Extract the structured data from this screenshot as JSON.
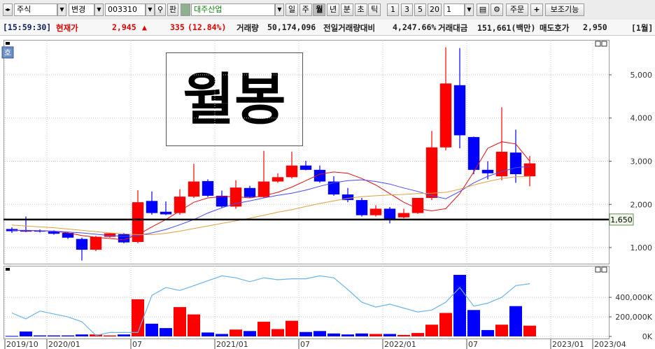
{
  "toolbar": {
    "market": "주식",
    "change": "변경",
    "code": "003310",
    "board": "판",
    "name": "대주산업",
    "periods": [
      "일",
      "주",
      "월",
      "년",
      "분",
      "초",
      "틱"
    ],
    "counts": [
      "1",
      "3",
      "5",
      "20"
    ],
    "count_input": "1",
    "order": "주문",
    "aux": "보조기능"
  },
  "status": {
    "time": "[15:59:30]",
    "price_label": "현재가",
    "price": "2,945",
    "arrow": "▲",
    "change": "335",
    "change_rate": "(12.84%)",
    "volume_label": "거래량",
    "volume": "50,174,096",
    "prev_ratio_label": "전일거래량대비",
    "prev_ratio": "4,247.66%",
    "amount_label": "거래대금",
    "amount": "151,661(백만)",
    "ask_label": "매도호가",
    "ask": "2,950",
    "period": "[1월]"
  },
  "side_icon": "호",
  "chart_data": [
    {
      "type": "candlestick",
      "annotation": "월봉",
      "x": [
        0,
        1,
        2,
        3,
        4,
        5,
        6,
        7,
        8,
        9,
        10,
        11,
        12,
        13,
        14,
        15,
        16,
        17,
        18,
        19,
        20,
        21,
        22,
        23,
        24,
        25,
        26,
        27,
        28,
        29,
        30,
        31,
        32,
        33,
        34,
        35,
        36,
        37
      ],
      "open": [
        1430,
        1390,
        1390,
        1370,
        1340,
        1200,
        950,
        1250,
        1310,
        1130,
        2080,
        1830,
        1800,
        2180,
        2540,
        2200,
        1950,
        2380,
        2170,
        2530,
        2630,
        2900,
        2800,
        2530,
        2230,
        2100,
        1750,
        1900,
        1700,
        1800,
        2150,
        3320,
        4760,
        3560,
        2800,
        2650,
        3200,
        2650
      ],
      "high": [
        1470,
        1720,
        1420,
        1400,
        1360,
        1230,
        1270,
        1340,
        1340,
        2330,
        2300,
        2070,
        2350,
        2940,
        2580,
        2320,
        2560,
        2430,
        3240,
        2720,
        3220,
        3010,
        2900,
        2650,
        2380,
        2150,
        1980,
        1940,
        1900,
        2150,
        3700,
        5640,
        5620,
        3570,
        3000,
        4250,
        3730,
        3120
      ],
      "low": [
        1340,
        1360,
        1350,
        1300,
        1200,
        700,
        920,
        1230,
        1100,
        1100,
        1760,
        1750,
        1760,
        2150,
        2170,
        1920,
        1900,
        2150,
        2150,
        2500,
        2600,
        2790,
        2500,
        2200,
        2050,
        1720,
        1720,
        1560,
        1680,
        1780,
        2100,
        3250,
        3300,
        2700,
        2580,
        2560,
        2500,
        2420
      ],
      "close": [
        1380,
        1370,
        1370,
        1320,
        1230,
        950,
        1250,
        1330,
        1120,
        2050,
        1800,
        1770,
        2180,
        2530,
        2200,
        1950,
        2390,
        2170,
        2530,
        2630,
        2900,
        2800,
        2530,
        2230,
        2100,
        1750,
        1900,
        1650,
        1800,
        2150,
        3320,
        4800,
        3600,
        2800,
        2720,
        3220,
        2700,
        2950
      ],
      "up_color": "#ff0000",
      "down_color": "#0000ff",
      "lines": [
        {
          "color": "#e01010",
          "values": [
            1400,
            1390,
            1390,
            1380,
            1340,
            1280,
            1240,
            1210,
            1180,
            1300,
            1480,
            1650,
            1850,
            2050,
            2150,
            2180,
            2180,
            2150,
            2200,
            2280,
            2400,
            2550,
            2700,
            2750,
            2720,
            2600,
            2450,
            2250,
            2050,
            1900,
            1850,
            1900,
            2250,
            2750,
            3300,
            3450,
            3400,
            3000
          ]
        },
        {
          "color": "#4848ff",
          "values": [
            1400,
            1400,
            1390,
            1380,
            1360,
            1340,
            1310,
            1280,
            1260,
            1280,
            1340,
            1420,
            1530,
            1650,
            1800,
            1920,
            2020,
            2080,
            2150,
            2210,
            2260,
            2330,
            2420,
            2500,
            2550,
            2570,
            2530,
            2470,
            2380,
            2300,
            2200,
            2130,
            2300,
            2500,
            2650,
            2760,
            2850,
            2880
          ]
        },
        {
          "color": "#e0a040",
          "values": [
            1520,
            1500,
            1480,
            1460,
            1430,
            1400,
            1370,
            1340,
            1320,
            1300,
            1300,
            1330,
            1380,
            1440,
            1500,
            1560,
            1620,
            1680,
            1750,
            1820,
            1880,
            1950,
            2020,
            2080,
            2140,
            2180,
            2200,
            2220,
            2230,
            2250,
            2260,
            2280,
            2350,
            2450,
            2530,
            2600,
            2640,
            2650
          ]
        }
      ],
      "hline": {
        "value": 1650,
        "label": "1,650"
      },
      "xlim": [
        0,
        43.15
      ],
      "ylim": [
        660,
        5680
      ],
      "yticks": [
        {
          "value": 1000,
          "label": "1,000"
        },
        {
          "value": 2000,
          "label": "2,000"
        },
        {
          "value": 3000,
          "label": "3,000"
        },
        {
          "value": 4000,
          "label": "4,000"
        },
        {
          "value": 5000,
          "label": "5,000"
        }
      ],
      "grid": true
    },
    {
      "type": "bar",
      "x": [
        0,
        1,
        2,
        3,
        4,
        5,
        6,
        7,
        8,
        9,
        10,
        11,
        12,
        13,
        14,
        15,
        16,
        17,
        18,
        19,
        20,
        21,
        22,
        23,
        24,
        25,
        26,
        27,
        28,
        29,
        30,
        31,
        32,
        33,
        34,
        35,
        36,
        37
      ],
      "values": [
        5000,
        50000,
        10000,
        10000,
        10000,
        20000,
        20000,
        10000,
        20000,
        380000,
        130000,
        85000,
        300000,
        225000,
        40000,
        25000,
        70000,
        55000,
        150000,
        75000,
        160000,
        45000,
        55000,
        30000,
        20000,
        30000,
        25000,
        25000,
        15000,
        35000,
        120000,
        240000,
        630000,
        270000,
        65000,
        120000,
        310000,
        110000
      ],
      "line": {
        "color": "#6ab4ea",
        "values": [
          240000,
          180000,
          260000,
          230000,
          200000,
          150000,
          10000,
          40000,
          40000,
          40000,
          420000,
          500000,
          470000,
          520000,
          570000,
          620000,
          600000,
          560000,
          600000,
          580000,
          590000,
          590000,
          620000,
          600000,
          480000,
          350000,
          300000,
          330000,
          290000,
          250000,
          270000,
          350000,
          500000,
          310000,
          340000,
          400000,
          520000,
          540000
        ]
      },
      "xlim": [
        0,
        43.15
      ],
      "ylim": [
        0,
        680000
      ],
      "xticks": [
        {
          "value": 0,
          "label": "2019/10"
        },
        {
          "value": 3,
          "label": "2020/01"
        },
        {
          "value": 9,
          "label": "07"
        },
        {
          "value": 15,
          "label": "2021/01"
        },
        {
          "value": 21,
          "label": "07"
        },
        {
          "value": 27,
          "label": "2022/01"
        },
        {
          "value": 33,
          "label": "07"
        },
        {
          "value": 39,
          "label": "2023/01"
        },
        {
          "value": 42,
          "label": "2023/04"
        }
      ],
      "yticks": [
        {
          "value": 0,
          "label": "0K"
        },
        {
          "value": 200000,
          "label": "200,000K"
        },
        {
          "value": 400000,
          "label": "400,000K"
        }
      ],
      "grid": true
    }
  ]
}
